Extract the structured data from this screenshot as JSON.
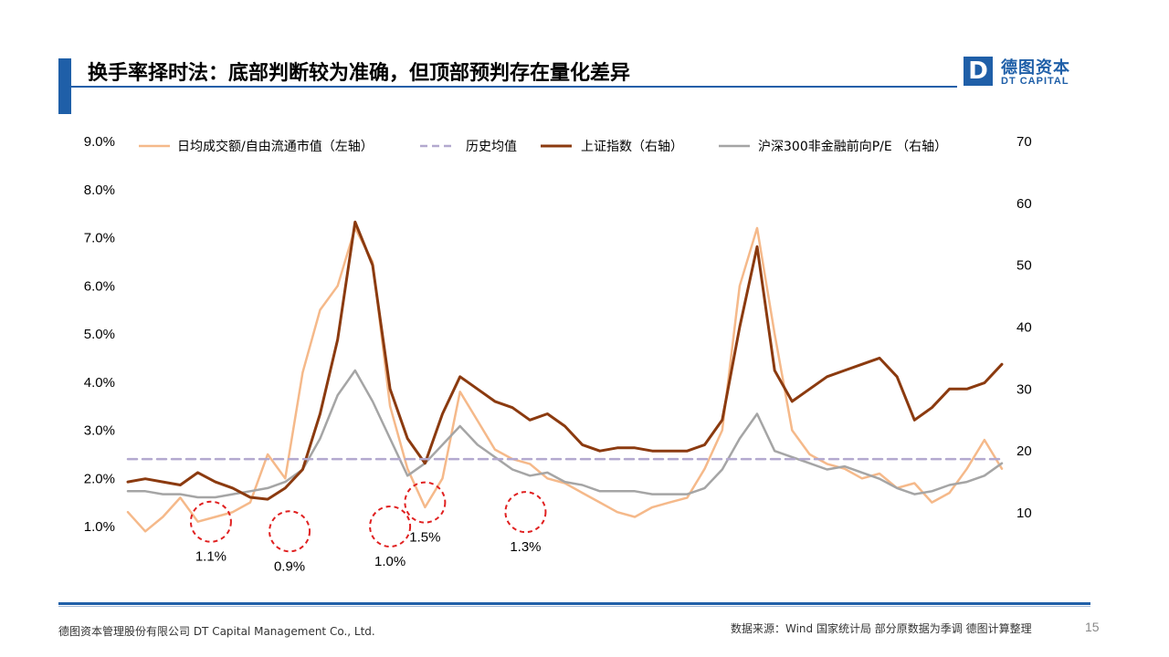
{
  "header": {
    "title": "换手率择时法：底部判断较为准确，但顶部预判存在量化差异",
    "logo_mark": "D",
    "logo_cn": "德图资本",
    "logo_en": "DT CAPITAL"
  },
  "footer": {
    "company": "德图资本管理股份有限公司  DT Capital Management  Co., Ltd.",
    "source": "数据来源：Wind  国家统计局 部分原数据为季调 德图计算整理",
    "page": "15"
  },
  "colors": {
    "brand": "#1f5fa8",
    "turnover": "#f5b98a",
    "avg": "#b3a9cf",
    "index": "#8b3a0f",
    "pe": "#a5a5a5",
    "circle": "#e02020"
  },
  "chart_data": {
    "type": "line",
    "left_axis": {
      "ylim": [
        0.5,
        9.0
      ],
      "ticks": [
        "1.0%",
        "2.0%",
        "3.0%",
        "4.0%",
        "5.0%",
        "6.0%",
        "7.0%",
        "8.0%",
        "9.0%"
      ],
      "tick_values": [
        1,
        2,
        3,
        4,
        5,
        6,
        7,
        8,
        9
      ]
    },
    "right_axis": {
      "ylim": [
        10,
        70
      ],
      "ticks": [
        "10",
        "20",
        "30",
        "40",
        "50",
        "60",
        "70"
      ],
      "tick_values": [
        10,
        20,
        30,
        40,
        50,
        60,
        70
      ]
    },
    "x": [
      0,
      2,
      4,
      6,
      8,
      10,
      12,
      14,
      16,
      18,
      20,
      22,
      24,
      26,
      28,
      30,
      32,
      34,
      36,
      38,
      40,
      42,
      44,
      46,
      48,
      50,
      52,
      54,
      56,
      58,
      60,
      62,
      64,
      66,
      68,
      70,
      72,
      74,
      76,
      78,
      80,
      82,
      84,
      86,
      88,
      90,
      92,
      94,
      96,
      98,
      100
    ],
    "series": [
      {
        "name": "日均成交额/自由流通市值（左轴）",
        "axis": "left",
        "style": "line",
        "color": "#f5b98a",
        "values": [
          1.3,
          0.9,
          1.2,
          1.6,
          1.1,
          1.2,
          1.3,
          1.5,
          2.5,
          2.0,
          4.2,
          5.5,
          6.0,
          7.2,
          6.5,
          3.5,
          2.2,
          1.4,
          2.0,
          3.8,
          3.2,
          2.6,
          2.4,
          2.3,
          2.0,
          1.9,
          1.7,
          1.5,
          1.3,
          1.2,
          1.4,
          1.5,
          1.6,
          2.2,
          3.0,
          6.0,
          7.2,
          5.0,
          3.0,
          2.5,
          2.3,
          2.2,
          2.0,
          2.1,
          1.8,
          1.9,
          1.5,
          1.7,
          2.2,
          2.8,
          2.2
        ]
      },
      {
        "name": "历史均值",
        "axis": "left",
        "style": "dashed",
        "color": "#b3a9cf",
        "values": [
          2.4,
          2.4,
          2.4,
          2.4,
          2.4,
          2.4,
          2.4,
          2.4,
          2.4,
          2.4,
          2.4,
          2.4,
          2.4,
          2.4,
          2.4,
          2.4,
          2.4,
          2.4,
          2.4,
          2.4,
          2.4,
          2.4,
          2.4,
          2.4,
          2.4,
          2.4,
          2.4,
          2.4,
          2.4,
          2.4,
          2.4,
          2.4,
          2.4,
          2.4,
          2.4,
          2.4,
          2.4,
          2.4,
          2.4,
          2.4,
          2.4,
          2.4,
          2.4,
          2.4,
          2.4,
          2.4,
          2.4,
          2.4,
          2.4,
          2.4,
          2.4
        ]
      },
      {
        "name": "上证指数（右轴）",
        "axis": "right",
        "style": "line",
        "color": "#8b3a0f",
        "values": [
          15.0,
          15.5,
          15.0,
          14.5,
          16.5,
          15.0,
          14.0,
          12.5,
          12.2,
          14.0,
          17.0,
          26.0,
          38.0,
          57.0,
          50.0,
          30.0,
          22.0,
          18.0,
          26.0,
          32.0,
          30.0,
          28.0,
          27.0,
          25.0,
          26.0,
          24.0,
          21.0,
          20.0,
          20.5,
          20.5,
          20.0,
          20.0,
          20.0,
          21.0,
          25.0,
          40.0,
          53.0,
          33.0,
          28.0,
          30.0,
          32.0,
          33.0,
          34.0,
          35.0,
          32.0,
          25.0,
          27.0,
          30.0,
          30.0,
          31.0,
          34.0
        ]
      },
      {
        "name": "沪深300非金融前向P/E （右轴）",
        "axis": "right",
        "style": "line",
        "color": "#a5a5a5",
        "values": [
          13.5,
          13.5,
          13.0,
          13.0,
          12.5,
          12.5,
          13.0,
          13.5,
          14.0,
          15.0,
          17.0,
          22.0,
          29.0,
          33.0,
          28.0,
          22.0,
          16.0,
          18.0,
          21.0,
          24.0,
          21.0,
          19.0,
          17.0,
          16.0,
          16.5,
          15.0,
          14.5,
          13.5,
          13.5,
          13.5,
          13.0,
          13.0,
          13.0,
          14.0,
          17.0,
          22.0,
          26.0,
          20.0,
          19.0,
          18.0,
          17.0,
          17.5,
          16.5,
          15.5,
          14.0,
          13.0,
          13.5,
          14.5,
          15.0,
          16.0,
          18.0
        ]
      }
    ],
    "annotations": [
      {
        "x": 9.5,
        "y": 1.1,
        "label": "1.1%"
      },
      {
        "x": 18.5,
        "y": 0.9,
        "label": "0.9%"
      },
      {
        "x": 30.0,
        "y": 1.0,
        "label": "1.0%"
      },
      {
        "x": 34.0,
        "y": 1.5,
        "label": "1.5%"
      },
      {
        "x": 45.5,
        "y": 1.3,
        "label": "1.3%"
      }
    ],
    "legend_position": "top",
    "grid": false
  }
}
